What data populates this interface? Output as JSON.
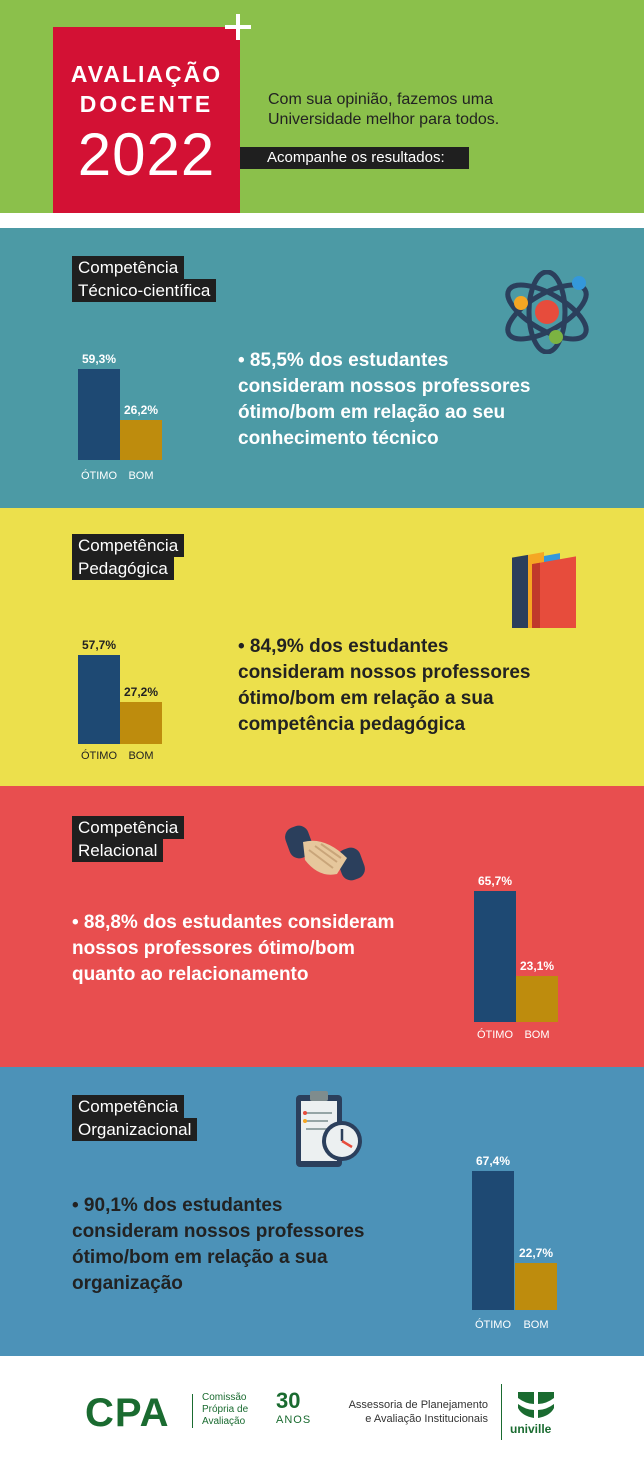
{
  "header": {
    "title_line1": "AVALIAÇÃO",
    "title_line2": "DOCENTE",
    "year": "2022",
    "tagline": "Com sua opinião, fazemos uma Universidade melhor para todos.",
    "follow": "Acompanhe os resultados:"
  },
  "sections": [
    {
      "label_line1": "Competência",
      "label_line2": "Técnico-científica",
      "text": "• 85,5% dos estudantes consideram nossos professores ótimo/bom em relação ao seu conhecimento técnico",
      "icon": "atom-icon",
      "bars": {
        "otimo_value": 59.3,
        "otimo_label": "59,3%",
        "bom_value": 26.2,
        "bom_label": "26,2%",
        "cat_otimo": "ÓTIMO",
        "cat_bom": "BOM"
      }
    },
    {
      "label_line1": "Competência",
      "label_line2": "Pedagógica",
      "text": "• 84,9% dos estudantes consideram nossos professores ótimo/bom em relação a sua competência pedagógica",
      "icon": "books-icon",
      "bars": {
        "otimo_value": 57.7,
        "otimo_label": "57,7%",
        "bom_value": 27.2,
        "bom_label": "27,2%",
        "cat_otimo": "ÓTIMO",
        "cat_bom": "BOM"
      }
    },
    {
      "label_line1": "Competência",
      "label_line2": "Relacional",
      "text": "• 88,8% dos estudantes consideram nossos professores ótimo/bom quanto ao relacionamento",
      "icon": "handshake-icon",
      "bars": {
        "otimo_value": 65.7,
        "otimo_label": "65,7%",
        "bom_value": 23.1,
        "bom_label": "23,1%",
        "cat_otimo": "ÓTIMO",
        "cat_bom": "BOM"
      }
    },
    {
      "label_line1": "Competência",
      "label_line2": "Organizacional",
      "text": "• 90,1% dos estudantes consideram nossos professores ótimo/bom em relação a sua organização",
      "icon": "clipboard-clock-icon",
      "bars": {
        "otimo_value": 67.4,
        "otimo_label": "67,4%",
        "bom_value": 22.7,
        "bom_label": "22,7%",
        "cat_otimo": "ÓTIMO",
        "cat_bom": "BOM"
      }
    }
  ],
  "footer": {
    "cpa": "CPA",
    "cpa_sub1": "Comissão",
    "cpa_sub2": "Própria de",
    "cpa_sub3": "Avaliação",
    "anos_number": "30",
    "anos_label": "ANOS",
    "assessoria_line1": "Assessoria de Planejamento",
    "assessoria_line2": "e Avaliação Institucionais",
    "univille": "univille"
  },
  "colors": {
    "header_bg": "#8bc04b",
    "title_red": "#d31134",
    "tec_bg": "#4c9aa5",
    "ped_bg": "#ece04c",
    "rel_bg": "#e84e4f",
    "org_bg": "#4c92b8",
    "bar_otimo": "#1e4973",
    "bar_bom": "#be8c0d",
    "brand_green": "#1a6b30"
  }
}
